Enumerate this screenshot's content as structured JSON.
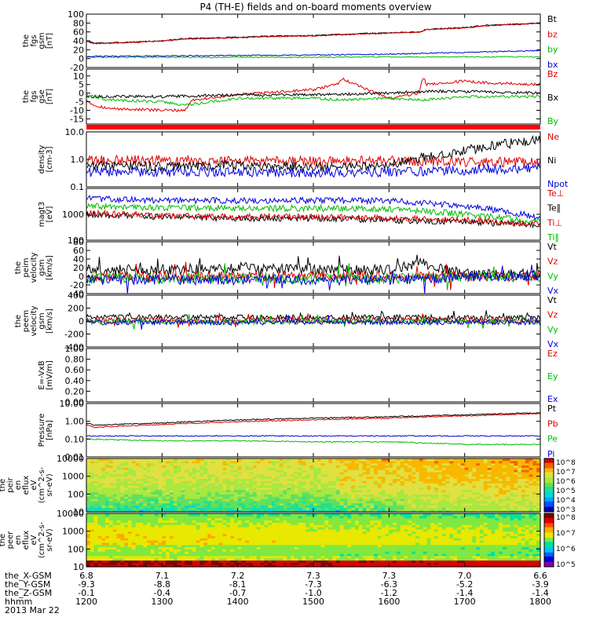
{
  "title": "P4 (TH-E) fields and on-board moments overview",
  "colors": {
    "black": "#000000",
    "red": "#dd0000",
    "green": "#00bb00",
    "blue": "#0000dd",
    "stripe": "#ff0000"
  },
  "chart_data": [
    {
      "type": "line",
      "ylabel": [
        "the",
        "fgs",
        "gsm",
        "[nT]"
      ],
      "ylim": [
        -20,
        100
      ],
      "yticks": [
        "100",
        "80",
        "60",
        "40",
        "20",
        "0",
        "-20"
      ],
      "legend": [
        {
          "label": "Bt",
          "color": "black"
        },
        {
          "label": "bz",
          "color": "red"
        },
        {
          "label": "by",
          "color": "green"
        },
        {
          "label": "bx",
          "color": "blue"
        }
      ],
      "series": [
        {
          "name": "Bt",
          "x": [
            1200,
            1210,
            1220,
            1240,
            1300,
            1330,
            1400,
            1430,
            1500,
            1540,
            1600,
            1640,
            1650,
            1700,
            1730,
            1800
          ],
          "y": [
            40,
            35,
            35,
            36,
            40,
            45,
            48,
            50,
            52,
            55,
            58,
            60,
            66,
            70,
            75,
            80
          ]
        },
        {
          "name": "bz",
          "x": [
            1200,
            1210,
            1220,
            1240,
            1300,
            1330,
            1400,
            1430,
            1500,
            1540,
            1600,
            1640,
            1650,
            1700,
            1730,
            1800
          ],
          "y": [
            39,
            34,
            34,
            35,
            39,
            44,
            47,
            49,
            51,
            54,
            57,
            59,
            65,
            69,
            74,
            79
          ]
        },
        {
          "name": "by",
          "x": [
            1200,
            1300,
            1400,
            1500,
            1600,
            1700,
            1800
          ],
          "y": [
            3,
            3,
            3,
            3,
            4,
            4,
            4
          ]
        },
        {
          "name": "bx",
          "x": [
            1200,
            1300,
            1400,
            1500,
            1600,
            1650,
            1700,
            1800
          ],
          "y": [
            5,
            6,
            7,
            8,
            10,
            12,
            14,
            18
          ]
        }
      ]
    },
    {
      "type": "line",
      "ylabel": [
        "the",
        "fgs",
        "gse",
        "[nT]"
      ],
      "ylim": [
        -18,
        14
      ],
      "yticks": [
        "10",
        "5",
        "0",
        "-5",
        "-10",
        "-15"
      ],
      "legend": [
        {
          "label": "Bz",
          "color": "red"
        },
        {
          "label": "Bx",
          "color": "black"
        },
        {
          "label": "By",
          "color": "green"
        }
      ],
      "series": [
        {
          "name": "Bz",
          "x": [
            1200,
            1210,
            1230,
            1300,
            1330,
            1340,
            1400,
            1430,
            1500,
            1530,
            1540,
            1600,
            1640,
            1645,
            1650,
            1700,
            1730,
            1800
          ],
          "y": [
            -4,
            -7,
            -9,
            -10,
            -10,
            -4,
            -1,
            0,
            2,
            5,
            8,
            -3,
            0,
            10,
            5,
            7,
            6,
            5
          ]
        },
        {
          "name": "Bx",
          "x": [
            1200,
            1230,
            1300,
            1400,
            1500,
            1600,
            1650,
            1700,
            1800
          ],
          "y": [
            -2,
            -2,
            -2,
            -1,
            -1,
            0,
            1,
            1,
            0
          ]
        },
        {
          "name": "By",
          "x": [
            1200,
            1230,
            1300,
            1330,
            1400,
            1500,
            1540,
            1600,
            1645,
            1700,
            1800
          ],
          "y": [
            -1,
            -4,
            -5,
            -7,
            -3,
            -3,
            -4,
            -3,
            -4,
            -2,
            -2
          ]
        }
      ]
    },
    {
      "type": "line",
      "ylabel": [
        "density",
        "[cm-3]"
      ],
      "ylim": [
        0.1,
        10
      ],
      "yscale": "log",
      "yticks": [
        "10.0",
        "1.0",
        "0.1"
      ],
      "legend": [
        {
          "label": "Ne",
          "color": "red"
        },
        {
          "label": "Ni",
          "color": "black"
        },
        {
          "label": "Npot",
          "color": "blue"
        }
      ],
      "series": [
        {
          "name": "Ne",
          "x": [
            1200,
            1300,
            1400,
            1500,
            1600,
            1700,
            1800
          ],
          "y": [
            0.9,
            0.95,
            0.9,
            0.85,
            0.9,
            0.8,
            0.8
          ]
        },
        {
          "name": "Ni",
          "x": [
            1200,
            1300,
            1400,
            1500,
            1600,
            1640,
            1700,
            1800
          ],
          "y": [
            0.6,
            0.55,
            0.6,
            0.5,
            0.6,
            1.1,
            2,
            5
          ]
        },
        {
          "name": "Npot",
          "x": [
            1200,
            1300,
            1400,
            1500,
            1600,
            1700,
            1800
          ],
          "y": [
            0.35,
            0.35,
            0.35,
            0.33,
            0.35,
            0.4,
            0.5
          ]
        }
      ]
    },
    {
      "type": "line",
      "ylabel": [
        "magt3",
        "[eV]"
      ],
      "ylim": [
        100,
        10000
      ],
      "yscale": "log",
      "yticks": [
        "1000",
        "100"
      ],
      "legend": [
        {
          "label": "Te⊥",
          "color": "red"
        },
        {
          "label": "Te∥",
          "color": "black"
        },
        {
          "label": "Ti⊥",
          "color": "red"
        },
        {
          "label": "Ti∥",
          "color": "green"
        }
      ],
      "series": [
        {
          "name": "Te∥",
          "x": [
            1200,
            1300,
            1400,
            1500,
            1600,
            1700,
            1800
          ],
          "y": [
            1000,
            800,
            700,
            700,
            600,
            500,
            400
          ]
        },
        {
          "name": "Te⊥",
          "x": [
            1200,
            1300,
            1400,
            1500,
            1600,
            1700,
            1800
          ],
          "y": [
            1100,
            900,
            800,
            800,
            700,
            600,
            400
          ]
        },
        {
          "name": "Ti∥",
          "x": [
            1200,
            1300,
            1400,
            1500,
            1600,
            1700,
            1800
          ],
          "y": [
            2000,
            1800,
            1700,
            1700,
            1600,
            1000,
            500
          ]
        },
        {
          "name": "Ti⊥",
          "x": [
            1200,
            1300,
            1400,
            1500,
            1600,
            1700,
            1800
          ],
          "y": [
            4000,
            3500,
            3400,
            3400,
            3300,
            2000,
            700
          ]
        }
      ]
    },
    {
      "type": "line",
      "ylabel": [
        "the",
        "peim",
        "velocity",
        "gsm",
        "[km/s]"
      ],
      "ylim": [
        -40,
        80
      ],
      "yticks": [
        "80",
        "60",
        "40",
        "20",
        "0",
        "-20",
        "-40"
      ],
      "legend": [
        {
          "label": "Vt",
          "color": "black"
        },
        {
          "label": "Vz",
          "color": "red"
        },
        {
          "label": "Vy",
          "color": "green"
        },
        {
          "label": "Vx",
          "color": "blue"
        }
      ],
      "series": [
        {
          "name": "Vt",
          "x": [
            1200,
            1300,
            1400,
            1500,
            1600,
            1645,
            1700,
            1800
          ],
          "y": [
            15,
            15,
            20,
            15,
            15,
            30,
            5,
            5
          ]
        },
        {
          "name": "Vz",
          "x": [
            1200,
            1300,
            1400,
            1500,
            1600,
            1700,
            1800
          ],
          "y": [
            0,
            0,
            0,
            0,
            0,
            0,
            0
          ]
        },
        {
          "name": "Vy",
          "x": [
            1200,
            1300,
            1400,
            1500,
            1600,
            1700,
            1800
          ],
          "y": [
            -5,
            -5,
            -5,
            -5,
            -5,
            -2,
            0
          ]
        },
        {
          "name": "Vx",
          "x": [
            1200,
            1300,
            1400,
            1500,
            1600,
            1700,
            1800
          ],
          "y": [
            -8,
            -8,
            -8,
            -8,
            -8,
            -2,
            0
          ]
        }
      ]
    },
    {
      "type": "line",
      "ylabel": [
        "the",
        "peem",
        "velocity",
        "gsm",
        "[km/s]"
      ],
      "ylim": [
        -400,
        400
      ],
      "yticks": [
        "400",
        "200",
        "0",
        "-200",
        "-400"
      ],
      "legend": [
        {
          "label": "Vt",
          "color": "black"
        },
        {
          "label": "Vz",
          "color": "red"
        },
        {
          "label": "Vy",
          "color": "green"
        },
        {
          "label": "Vx",
          "color": "blue"
        }
      ],
      "series": [
        {
          "name": "Vt",
          "x": [
            1200,
            1300,
            1400,
            1500,
            1600,
            1700,
            1800
          ],
          "y": [
            60,
            60,
            60,
            60,
            60,
            50,
            50
          ]
        },
        {
          "name": "Vz",
          "x": [
            1200,
            1300,
            1400,
            1500,
            1600,
            1700,
            1800
          ],
          "y": [
            10,
            10,
            10,
            10,
            10,
            10,
            10
          ]
        },
        {
          "name": "Vy",
          "x": [
            1200,
            1300,
            1400,
            1500,
            1600,
            1700,
            1800
          ],
          "y": [
            -10,
            -10,
            -10,
            -10,
            -10,
            -10,
            -10
          ]
        },
        {
          "name": "Vx",
          "x": [
            1200,
            1300,
            1400,
            1500,
            1600,
            1700,
            1800
          ],
          "y": [
            -20,
            -20,
            -20,
            -20,
            -20,
            -20,
            -20
          ]
        }
      ]
    },
    {
      "type": "line",
      "ylabel": [
        "E=-VxB",
        "[mV/m]"
      ],
      "ylim": [
        0,
        1
      ],
      "yticks": [
        "1.00",
        "0.80",
        "0.60",
        "0.40",
        "0.20",
        "0.00"
      ],
      "legend": [
        {
          "label": "Ez",
          "color": "red"
        },
        {
          "label": "Ey",
          "color": "green"
        },
        {
          "label": "Ex",
          "color": "blue"
        }
      ],
      "series": []
    },
    {
      "type": "line",
      "ylabel": [
        "Pressure",
        "[nPa]"
      ],
      "ylim": [
        0.01,
        10
      ],
      "yscale": "log",
      "yticks": [
        "10.00",
        "1.00",
        "0.10",
        "0.01"
      ],
      "legend": [
        {
          "label": "Pt",
          "color": "black"
        },
        {
          "label": "Pb",
          "color": "red"
        },
        {
          "label": "Pe",
          "color": "green"
        },
        {
          "label": "Pi",
          "color": "blue"
        }
      ],
      "series": [
        {
          "name": "Pt",
          "x": [
            1200,
            1210,
            1300,
            1400,
            1500,
            1600,
            1700,
            1800
          ],
          "y": [
            0.8,
            0.6,
            0.8,
            1.2,
            1.5,
            1.8,
            2.3,
            3.0
          ]
        },
        {
          "name": "Pb",
          "x": [
            1200,
            1210,
            1300,
            1400,
            1500,
            1600,
            1700,
            1800
          ],
          "y": [
            0.65,
            0.45,
            0.65,
            0.95,
            1.2,
            1.5,
            2.0,
            2.7
          ]
        },
        {
          "name": "Pi",
          "x": [
            1200,
            1300,
            1400,
            1500,
            1600,
            1700,
            1800
          ],
          "y": [
            0.15,
            0.15,
            0.15,
            0.15,
            0.15,
            0.15,
            0.15
          ]
        },
        {
          "name": "Pe",
          "x": [
            1200,
            1300,
            1400,
            1500,
            1600,
            1700,
            1800
          ],
          "y": [
            0.1,
            0.08,
            0.08,
            0.07,
            0.07,
            0.05,
            0.05
          ]
        }
      ]
    },
    {
      "type": "heatmap",
      "ylabel": [
        "the",
        "peir",
        "en",
        "eflux",
        "eV",
        "(cm^2-s-",
        "sr-eV)"
      ],
      "ylim": [
        10,
        10000
      ],
      "yscale": "log",
      "yticks": [
        "10000",
        "1000",
        "100",
        "10"
      ],
      "colorbar_ticks": [
        "10^8",
        "10^7",
        "10^6",
        "10^5",
        "10^4",
        "10^3"
      ]
    },
    {
      "type": "heatmap",
      "ylabel": [
        "the",
        "peer",
        "en",
        "eflux",
        "eV",
        "(cm^2-s-",
        "sr-eV)"
      ],
      "ylim": [
        10,
        10000
      ],
      "yscale": "log",
      "yticks": [
        "10000",
        "1000",
        "100",
        "10"
      ],
      "colorbar_ticks": [
        "10^8",
        "10^7",
        "10^6",
        "10^5"
      ]
    }
  ],
  "x_axis": {
    "range": [
      1200,
      1800
    ],
    "ticks": [
      1200,
      1300,
      1400,
      1500,
      1600,
      1700,
      1800
    ],
    "rows": [
      {
        "label": "the_X-GSM",
        "values": [
          "6.8",
          "7.1",
          "7.2",
          "7.3",
          "7.3",
          "7.0",
          "6.6"
        ]
      },
      {
        "label": "the_Y-GSM",
        "values": [
          "-9.3",
          "-8.8",
          "-8.1",
          "-7.3",
          "-6.3",
          "-5.2",
          "-3.9"
        ]
      },
      {
        "label": "the_Z-GSM",
        "values": [
          "-0.1",
          "-0.4",
          "-0.7",
          "-1.0",
          "-1.2",
          "-1.4",
          "-1.4"
        ]
      },
      {
        "label": "hhmm",
        "values": [
          "1200",
          "1300",
          "1400",
          "1500",
          "1600",
          "1700",
          "1800"
        ]
      }
    ],
    "date": "2013 Mar 22"
  }
}
